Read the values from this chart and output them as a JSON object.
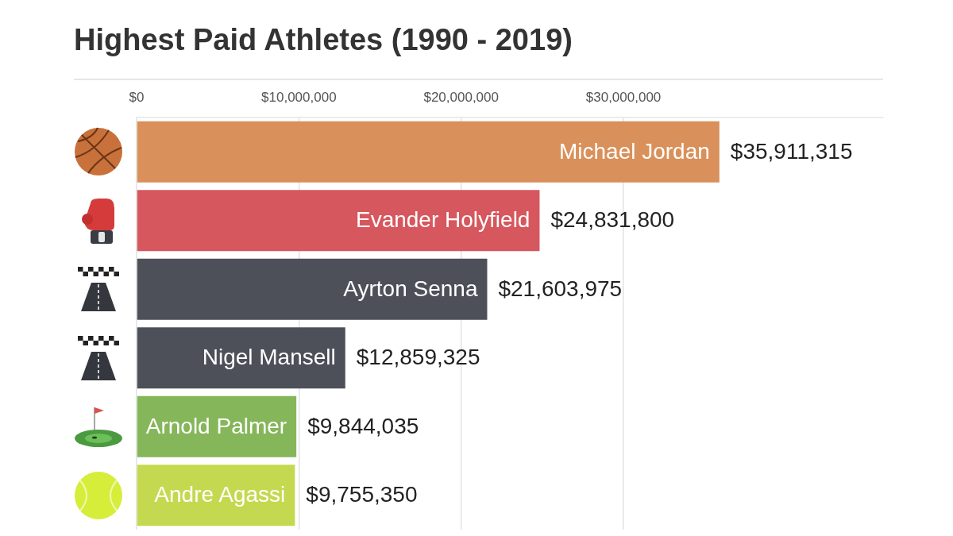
{
  "chart_data": {
    "type": "bar",
    "orientation": "horizontal",
    "title": "Highest Paid Athletes (1990 - 2019)",
    "categories": [
      "Michael Jordan",
      "Evander Holyfield",
      "Ayrton Senna",
      "Nigel Mansell",
      "Arnold Palmer",
      "Andre Agassi"
    ],
    "values": [
      35911315,
      24831800,
      21603975,
      12859325,
      9844035,
      9755350
    ],
    "colors": [
      "#d9905a",
      "#d6575e",
      "#4d5059",
      "#4d5059",
      "#85b65a",
      "#c4d94f"
    ],
    "value_labels": [
      "$35,911,315",
      "$24,831,800",
      "$21,603,975",
      "$12,859,325",
      "$9,844,035",
      "$9,755,350"
    ],
    "xlim": [
      0,
      46000000
    ],
    "xticks": [
      {
        "value": 0,
        "label": "$0"
      },
      {
        "value": 10000000,
        "label": "$10,000,000"
      },
      {
        "value": 20000000,
        "label": "$20,000,000"
      },
      {
        "value": 30000000,
        "label": "$30,000,000"
      }
    ],
    "grid": "x"
  }
}
